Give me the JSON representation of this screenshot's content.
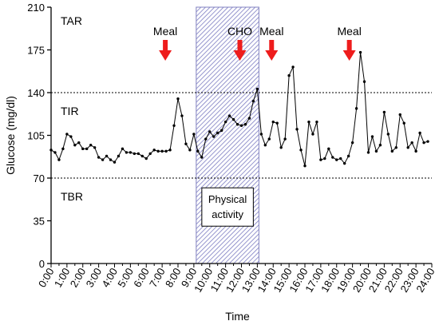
{
  "chart_data": {
    "type": "line",
    "xlabel": "Time",
    "ylabel": "Glucose (mg/dl)",
    "xlim": [
      0,
      24
    ],
    "ylim": [
      0,
      210
    ],
    "yticks": [
      0,
      35,
      70,
      105,
      140,
      175,
      210
    ],
    "xticks": [
      "0:00",
      "1:00",
      "2:00",
      "3:00",
      "4:00",
      "5:00",
      "6:00",
      "7:00",
      "8:00",
      "9:00",
      "10:00",
      "11:00",
      "12:00",
      "13:00",
      "14:00",
      "15:00",
      "16:00",
      "17:00",
      "18:00",
      "19:00",
      "20:00",
      "21:00",
      "22:00",
      "23:00",
      "24:00"
    ],
    "grid": false,
    "reference_lines": [
      {
        "y": 140,
        "style": "dashed"
      },
      {
        "y": 70,
        "style": "dashed"
      }
    ],
    "zones": [
      {
        "label": "TAR",
        "y": 199
      },
      {
        "label": "TIR",
        "y": 125
      },
      {
        "label": "TBR",
        "y": 55
      }
    ],
    "shaded_region": {
      "x0": 9.15,
      "x1": 13.1,
      "label_lines": [
        "Physical",
        "activity"
      ],
      "color": "#8080c0"
    },
    "annotations": [
      {
        "label": "Meal",
        "x": 7.2,
        "color": "#ee1c1c"
      },
      {
        "label": "CHO",
        "x": 11.9,
        "color": "#ee1c1c"
      },
      {
        "label": "Meal",
        "x": 13.9,
        "color": "#ee1c1c"
      },
      {
        "label": "Meal",
        "x": 18.8,
        "color": "#ee1c1c"
      }
    ],
    "series": [
      {
        "color": "#000000",
        "points": [
          [
            0.0,
            93
          ],
          [
            0.25,
            91
          ],
          [
            0.5,
            85
          ],
          [
            0.75,
            94
          ],
          [
            1.0,
            106
          ],
          [
            1.25,
            104
          ],
          [
            1.5,
            97
          ],
          [
            1.75,
            99
          ],
          [
            2.0,
            94
          ],
          [
            2.25,
            94
          ],
          [
            2.5,
            97
          ],
          [
            2.75,
            95
          ],
          [
            3.0,
            87
          ],
          [
            3.25,
            85
          ],
          [
            3.5,
            88
          ],
          [
            3.75,
            85
          ],
          [
            4.0,
            83
          ],
          [
            4.25,
            88
          ],
          [
            4.5,
            94
          ],
          [
            4.75,
            91
          ],
          [
            5.0,
            91
          ],
          [
            5.25,
            90
          ],
          [
            5.5,
            90
          ],
          [
            5.75,
            88
          ],
          [
            6.0,
            86
          ],
          [
            6.25,
            90
          ],
          [
            6.5,
            93
          ],
          [
            6.75,
            92
          ],
          [
            7.0,
            92
          ],
          [
            7.25,
            92
          ],
          [
            7.5,
            93
          ],
          [
            7.75,
            113
          ],
          [
            8.0,
            135
          ],
          [
            8.25,
            121
          ],
          [
            8.5,
            98
          ],
          [
            8.75,
            93
          ],
          [
            9.0,
            106
          ],
          [
            9.25,
            92
          ],
          [
            9.5,
            87
          ],
          [
            9.75,
            102
          ],
          [
            10.0,
            108
          ],
          [
            10.25,
            104
          ],
          [
            10.5,
            107
          ],
          [
            10.75,
            109
          ],
          [
            11.0,
            116
          ],
          [
            11.25,
            121
          ],
          [
            11.5,
            118
          ],
          [
            11.75,
            114
          ],
          [
            12.0,
            113
          ],
          [
            12.25,
            114
          ],
          [
            12.5,
            119
          ],
          [
            12.75,
            133
          ],
          [
            13.0,
            143
          ],
          [
            13.25,
            106
          ],
          [
            13.5,
            97
          ],
          [
            13.75,
            102
          ],
          [
            14.0,
            116
          ],
          [
            14.25,
            115
          ],
          [
            14.5,
            95
          ],
          [
            14.75,
            102
          ],
          [
            15.0,
            154
          ],
          [
            15.25,
            161
          ],
          [
            15.5,
            110
          ],
          [
            15.75,
            93
          ],
          [
            16.0,
            80
          ],
          [
            16.25,
            116
          ],
          [
            16.5,
            106
          ],
          [
            16.75,
            116
          ],
          [
            17.0,
            85
          ],
          [
            17.25,
            86
          ],
          [
            17.5,
            94
          ],
          [
            17.75,
            87
          ],
          [
            18.0,
            85
          ],
          [
            18.25,
            86
          ],
          [
            18.5,
            82
          ],
          [
            18.75,
            88
          ],
          [
            19.0,
            99
          ],
          [
            19.25,
            127
          ],
          [
            19.5,
            173
          ],
          [
            19.75,
            149
          ],
          [
            20.0,
            91
          ],
          [
            20.25,
            104
          ],
          [
            20.5,
            92
          ],
          [
            20.75,
            97
          ],
          [
            21.0,
            124
          ],
          [
            21.25,
            106
          ],
          [
            21.5,
            92
          ],
          [
            21.75,
            95
          ],
          [
            22.0,
            122
          ],
          [
            22.25,
            115
          ],
          [
            22.5,
            95
          ],
          [
            22.75,
            99
          ],
          [
            23.0,
            92
          ],
          [
            23.25,
            107
          ],
          [
            23.5,
            99
          ],
          [
            23.75,
            100
          ]
        ]
      }
    ]
  }
}
